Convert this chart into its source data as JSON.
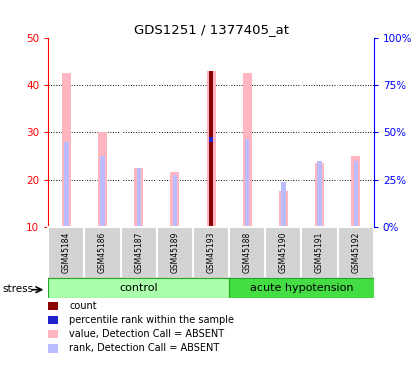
{
  "title": "GDS1251 / 1377405_at",
  "samples": [
    "GSM45184",
    "GSM45186",
    "GSM45187",
    "GSM45189",
    "GSM45193",
    "GSM45188",
    "GSM45190",
    "GSM45191",
    "GSM45192"
  ],
  "value_pink": [
    42.5,
    30.0,
    22.5,
    21.5,
    43.0,
    42.5,
    17.5,
    23.5,
    25.0
  ],
  "rank_blue": [
    28.0,
    25.0,
    22.5,
    21.0,
    28.5,
    28.5,
    19.5,
    24.0,
    24.0
  ],
  "count_red_idx": 4,
  "count_red_val": 43.0,
  "rank_blue_val_for_red": 28.5,
  "ylim": [
    10,
    50
  ],
  "y2lim": [
    0,
    100
  ],
  "yticks": [
    10,
    20,
    30,
    40,
    50
  ],
  "y2ticks": [
    0,
    25,
    50,
    75,
    100
  ],
  "y2ticklabels": [
    "0%",
    "25%",
    "50%",
    "75%",
    "100%"
  ],
  "pink_bar_width": 0.25,
  "blue_bar_width": 0.12,
  "red_bar_width": 0.12,
  "color_pink": "#FFB6C1",
  "color_blue_rank": "#BBBBFF",
  "color_red": "#8B0000",
  "color_blue_pct": "#2222CC",
  "ctrl_n": 5,
  "stress_label": "stress",
  "legend_items": [
    {
      "color": "#8B0000",
      "label": "count"
    },
    {
      "color": "#2222CC",
      "label": "percentile rank within the sample"
    },
    {
      "color": "#FFB6C1",
      "label": "value, Detection Call = ABSENT"
    },
    {
      "color": "#BBBBFF",
      "label": "rank, Detection Call = ABSENT"
    }
  ]
}
